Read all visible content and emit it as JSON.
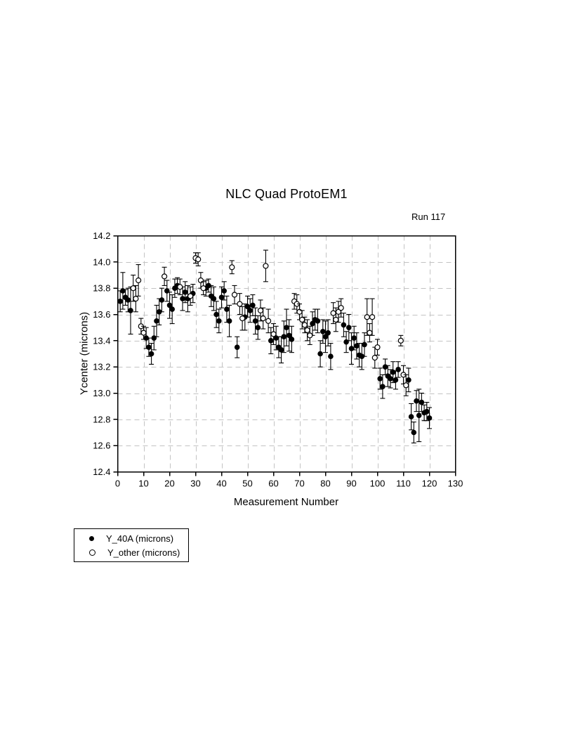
{
  "page": {
    "background": "#ffffff"
  },
  "chart_data": {
    "type": "scatter",
    "title": "NLC Quad ProtoEM1",
    "annotation": "Run 117",
    "xlabel": "Measurement Number",
    "ylabel": "Ycenter (microns)",
    "xlim": [
      0,
      130
    ],
    "ylim": [
      12.4,
      14.2
    ],
    "x_ticks": [
      0,
      10,
      20,
      30,
      40,
      50,
      60,
      70,
      80,
      90,
      100,
      110,
      120,
      130
    ],
    "x_tick_labels": [
      "0",
      "10",
      "20",
      "30",
      "40",
      "50",
      "60",
      "70",
      "80",
      "90",
      "100",
      "110",
      "120",
      "130"
    ],
    "y_ticks": [
      12.4,
      12.6,
      12.8,
      13.0,
      13.2,
      13.4,
      13.6,
      13.8,
      14.0,
      14.2
    ],
    "y_tick_labels": [
      "12.4",
      "12.6",
      "12.8",
      "13.0",
      "13.2",
      "13.4",
      "13.6",
      "13.8",
      "14.0",
      "14.2"
    ],
    "grid": {
      "show": true,
      "style": "dashed",
      "color": "#c3c3c3"
    },
    "axis_color": "#000000",
    "marker_color": "#000000",
    "error_bars": true,
    "legend": {
      "position": "bottom-left",
      "entries": [
        {
          "label": "Y_40A (microns)",
          "marker": "filled-circle",
          "color": "#000000"
        },
        {
          "label": "Y_other (microns)",
          "marker": "open-circle",
          "color": "#000000"
        }
      ]
    },
    "series": [
      {
        "name": "Y_40A (microns)",
        "marker": "filled-circle",
        "points": [
          [
            1,
            13.7,
            0.08
          ],
          [
            2,
            13.78,
            0.14
          ],
          [
            3,
            13.73,
            0.06
          ],
          [
            4,
            13.71,
            0.09
          ],
          [
            5,
            13.63,
            0.18
          ],
          [
            11,
            13.42,
            0.08
          ],
          [
            12,
            13.35,
            0.07
          ],
          [
            13,
            13.3,
            0.08
          ],
          [
            14,
            13.42,
            0.09
          ],
          [
            15,
            13.55,
            0.12
          ],
          [
            16,
            13.62,
            0.1
          ],
          [
            17,
            13.71,
            0.09
          ],
          [
            19,
            13.78,
            0.08
          ],
          [
            20,
            13.67,
            0.1
          ],
          [
            21,
            13.64,
            0.11
          ],
          [
            22,
            13.8,
            0.07
          ],
          [
            23,
            13.82,
            0.06
          ],
          [
            25,
            13.72,
            0.09
          ],
          [
            26,
            13.77,
            0.08
          ],
          [
            27,
            13.72,
            0.1
          ],
          [
            29,
            13.76,
            0.07
          ],
          [
            34,
            13.8,
            0.06
          ],
          [
            35,
            13.82,
            0.05
          ],
          [
            36,
            13.74,
            0.08
          ],
          [
            37,
            13.72,
            0.09
          ],
          [
            38,
            13.6,
            0.1
          ],
          [
            39,
            13.55,
            0.09
          ],
          [
            40,
            13.73,
            0.08
          ],
          [
            41,
            13.78,
            0.07
          ],
          [
            42,
            13.64,
            0.1
          ],
          [
            43,
            13.55,
            0.12
          ],
          [
            46,
            13.35,
            0.08
          ],
          [
            49,
            13.58,
            0.1
          ],
          [
            50,
            13.66,
            0.08
          ],
          [
            51,
            13.63,
            0.09
          ],
          [
            52,
            13.67,
            0.08
          ],
          [
            53,
            13.55,
            0.1
          ],
          [
            54,
            13.5,
            0.09
          ],
          [
            59,
            13.4,
            0.1
          ],
          [
            61,
            13.42,
            0.09
          ],
          [
            62,
            13.35,
            0.08
          ],
          [
            63,
            13.33,
            0.1
          ],
          [
            64,
            13.43,
            0.12
          ],
          [
            65,
            13.5,
            0.14
          ],
          [
            66,
            13.44,
            0.12
          ],
          [
            67,
            13.41,
            0.1
          ],
          [
            75,
            13.53,
            0.09
          ],
          [
            76,
            13.56,
            0.08
          ],
          [
            77,
            13.55,
            0.09
          ],
          [
            78,
            13.3,
            0.1
          ],
          [
            79,
            13.47,
            0.09
          ],
          [
            80,
            13.43,
            0.12
          ],
          [
            81,
            13.46,
            0.1
          ],
          [
            82,
            13.28,
            0.1
          ],
          [
            87,
            13.52,
            0.09
          ],
          [
            88,
            13.39,
            0.08
          ],
          [
            89,
            13.5,
            0.1
          ],
          [
            90,
            13.34,
            0.12
          ],
          [
            91,
            13.42,
            0.09
          ],
          [
            92,
            13.36,
            0.1
          ],
          [
            93,
            13.29,
            0.09
          ],
          [
            94,
            13.28,
            0.1
          ],
          [
            95,
            13.37,
            0.09
          ],
          [
            101,
            13.11,
            0.08
          ],
          [
            102,
            13.05,
            0.09
          ],
          [
            103,
            13.2,
            0.06
          ],
          [
            104,
            13.13,
            0.08
          ],
          [
            105,
            13.11,
            0.07
          ],
          [
            106,
            13.16,
            0.08
          ],
          [
            107,
            13.1,
            0.07
          ],
          [
            108,
            13.18,
            0.06
          ],
          [
            112,
            13.1,
            0.09
          ],
          [
            113,
            12.82,
            0.1
          ],
          [
            114,
            12.7,
            0.08
          ],
          [
            115,
            12.94,
            0.08
          ],
          [
            116,
            12.83,
            0.2
          ],
          [
            117,
            12.93,
            0.07
          ],
          [
            118,
            12.85,
            0.06
          ],
          [
            119,
            12.86,
            0.07
          ],
          [
            120,
            12.81,
            0.08
          ]
        ]
      },
      {
        "name": "Y_other (microns)",
        "marker": "open-circle",
        "points": [
          [
            6,
            13.8,
            0.1
          ],
          [
            7,
            13.72,
            0.1
          ],
          [
            8,
            13.86,
            0.12
          ],
          [
            9,
            13.51,
            0.06
          ],
          [
            10,
            13.46,
            0.05
          ],
          [
            18,
            13.89,
            0.07
          ],
          [
            24,
            13.81,
            0.06
          ],
          [
            28,
            13.74,
            0.07
          ],
          [
            30,
            14.03,
            0.04
          ],
          [
            31,
            14.02,
            0.05
          ],
          [
            32,
            13.86,
            0.06
          ],
          [
            33,
            13.8,
            0.05
          ],
          [
            44,
            13.96,
            0.05
          ],
          [
            45,
            13.75,
            0.07
          ],
          [
            47,
            13.68,
            0.08
          ],
          [
            48,
            13.57,
            0.09
          ],
          [
            55,
            13.63,
            0.08
          ],
          [
            56,
            13.57,
            0.08
          ],
          [
            57,
            13.97,
            0.12
          ],
          [
            58,
            13.55,
            0.09
          ],
          [
            60,
            13.45,
            0.08
          ],
          [
            68,
            13.7,
            0.06
          ],
          [
            69,
            13.68,
            0.07
          ],
          [
            70,
            13.62,
            0.06
          ],
          [
            71,
            13.56,
            0.07
          ],
          [
            72,
            13.52,
            0.06
          ],
          [
            73,
            13.48,
            0.08
          ],
          [
            74,
            13.44,
            0.07
          ],
          [
            83,
            13.61,
            0.08
          ],
          [
            84,
            13.56,
            0.09
          ],
          [
            85,
            13.62,
            0.08
          ],
          [
            86,
            13.65,
            0.07
          ],
          [
            96,
            13.58,
            0.14
          ],
          [
            97,
            13.46,
            0.07
          ],
          [
            98,
            13.58,
            0.14
          ],
          [
            99,
            13.27,
            0.08
          ],
          [
            100,
            13.35,
            0.06
          ],
          [
            109,
            13.4,
            0.04
          ],
          [
            110,
            13.14,
            0.07
          ],
          [
            111,
            13.06,
            0.08
          ]
        ]
      }
    ]
  }
}
